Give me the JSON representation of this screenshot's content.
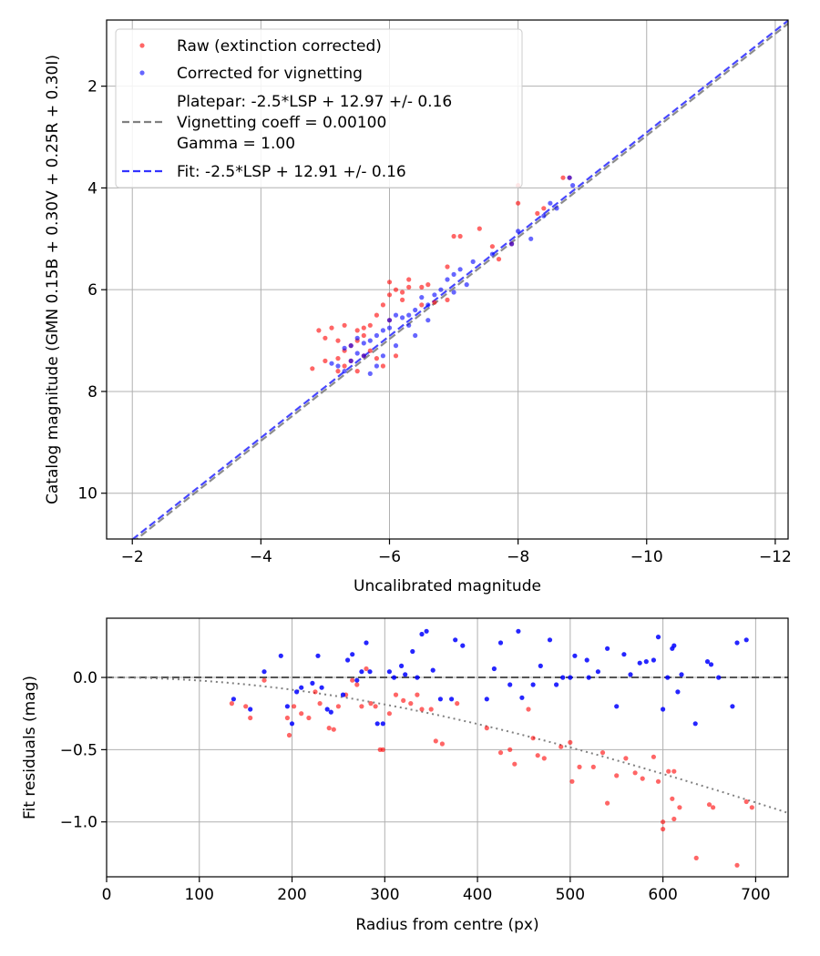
{
  "colors": {
    "raw": "#ff0000",
    "corrected": "#0000ff",
    "platepar_line": "#808080",
    "fit_line": "#3333ff",
    "zero_line": "#555555",
    "grid": "#b0b0b0"
  },
  "chart_data": [
    {
      "id": "calibration",
      "type": "scatter",
      "xlabel": "Uncalibrated magnitude",
      "ylabel": "Catalog magnitude (GMN 0.15B + 0.30V + 0.25R + 0.30I)",
      "xlim": [
        -1.6,
        -12.2
      ],
      "ylim": [
        10.9,
        0.7
      ],
      "x_ticks": [
        -2,
        -4,
        -6,
        -8,
        -10,
        -12
      ],
      "x_tick_labels": [
        "−2",
        "−4",
        "−6",
        "−8",
        "−10",
        "−12"
      ],
      "y_ticks": [
        2,
        4,
        6,
        8,
        10
      ],
      "y_tick_labels": [
        "2",
        "4",
        "6",
        "8",
        "10"
      ],
      "grid": true,
      "legend_position": "top-left",
      "legend": [
        {
          "kind": "marker",
          "color": "#ff0000",
          "lines": [
            "Raw (extinction corrected)"
          ]
        },
        {
          "kind": "marker",
          "color": "#0000ff",
          "lines": [
            "Corrected for vignetting"
          ]
        },
        {
          "kind": "line",
          "color": "#808080",
          "lines": [
            "Platepar: -2.5*LSP + 12.97 +/- 0.16",
            "Vignetting coeff = 0.00100",
            "Gamma = 1.00"
          ]
        },
        {
          "kind": "line",
          "color": "#3333ff",
          "lines": [
            "Fit: -2.5*LSP + 12.91 +/- 0.16"
          ]
        }
      ],
      "lines": [
        {
          "name": "Platepar",
          "intercept": 12.97,
          "slope_note": "catalog = uncalibrated + 12.97",
          "color": "#808080"
        },
        {
          "name": "Fit",
          "intercept": 12.91,
          "slope_note": "catalog = uncalibrated + 12.91",
          "color": "#3333ff"
        }
      ],
      "series": [
        {
          "name": "Raw (extinction corrected)",
          "color": "#ff0000",
          "points": [
            [
              -8.0,
              3.95
            ],
            [
              -8.0,
              4.3
            ],
            [
              -8.3,
              4.5
            ],
            [
              -8.4,
              4.4
            ],
            [
              -8.7,
              3.8
            ],
            [
              -8.8,
              3.8
            ],
            [
              -7.4,
              4.8
            ],
            [
              -7.1,
              4.95
            ],
            [
              -7.0,
              4.95
            ],
            [
              -7.6,
              5.15
            ],
            [
              -7.9,
              5.1
            ],
            [
              -7.7,
              5.4
            ],
            [
              -6.9,
              5.55
            ],
            [
              -6.6,
              5.9
            ],
            [
              -6.5,
              5.95
            ],
            [
              -6.3,
              5.95
            ],
            [
              -6.1,
              6.0
            ],
            [
              -6.2,
              6.05
            ],
            [
              -6.0,
              5.85
            ],
            [
              -6.0,
              6.1
            ],
            [
              -6.2,
              6.2
            ],
            [
              -5.9,
              6.3
            ],
            [
              -6.5,
              6.3
            ],
            [
              -6.7,
              6.25
            ],
            [
              -5.8,
              6.5
            ],
            [
              -6.0,
              6.6
            ],
            [
              -5.7,
              6.7
            ],
            [
              -5.6,
              6.75
            ],
            [
              -5.5,
              6.8
            ],
            [
              -5.3,
              6.7
            ],
            [
              -5.1,
              6.75
            ],
            [
              -4.9,
              6.8
            ],
            [
              -5.0,
              6.95
            ],
            [
              -5.2,
              7.0
            ],
            [
              -5.4,
              7.1
            ],
            [
              -5.5,
              7.0
            ],
            [
              -5.6,
              6.9
            ],
            [
              -5.7,
              7.2
            ],
            [
              -5.3,
              7.2
            ],
            [
              -5.2,
              7.35
            ],
            [
              -5.0,
              7.4
            ],
            [
              -4.8,
              7.55
            ],
            [
              -5.3,
              7.5
            ],
            [
              -5.5,
              7.6
            ],
            [
              -5.4,
              7.4
            ],
            [
              -5.8,
              7.35
            ],
            [
              -5.9,
              7.5
            ],
            [
              -6.1,
              7.3
            ],
            [
              -5.6,
              7.3
            ],
            [
              -5.2,
              7.6
            ],
            [
              -6.3,
              5.8
            ],
            [
              -6.9,
              6.2
            ]
          ]
        },
        {
          "name": "Corrected for vignetting",
          "color": "#0000ff",
          "points": [
            [
              -8.8,
              3.8
            ],
            [
              -8.85,
              3.95
            ],
            [
              -8.5,
              4.3
            ],
            [
              -8.6,
              4.4
            ],
            [
              -8.4,
              4.55
            ],
            [
              -8.0,
              4.85
            ],
            [
              -8.2,
              5.0
            ],
            [
              -7.9,
              5.1
            ],
            [
              -7.6,
              5.3
            ],
            [
              -7.3,
              5.45
            ],
            [
              -7.1,
              5.6
            ],
            [
              -7.0,
              5.7
            ],
            [
              -6.9,
              5.8
            ],
            [
              -7.2,
              5.9
            ],
            [
              -6.8,
              6.0
            ],
            [
              -6.7,
              6.1
            ],
            [
              -6.5,
              6.15
            ],
            [
              -6.6,
              6.3
            ],
            [
              -6.4,
              6.4
            ],
            [
              -6.3,
              6.5
            ],
            [
              -6.2,
              6.55
            ],
            [
              -6.1,
              6.5
            ],
            [
              -6.0,
              6.6
            ],
            [
              -6.3,
              6.7
            ],
            [
              -6.0,
              6.75
            ],
            [
              -5.9,
              6.8
            ],
            [
              -5.8,
              6.9
            ],
            [
              -5.7,
              7.0
            ],
            [
              -5.6,
              7.05
            ],
            [
              -5.5,
              6.95
            ],
            [
              -5.4,
              7.1
            ],
            [
              -5.3,
              7.15
            ],
            [
              -5.5,
              7.25
            ],
            [
              -5.6,
              7.3
            ],
            [
              -5.4,
              7.4
            ],
            [
              -5.2,
              7.5
            ],
            [
              -5.1,
              7.45
            ],
            [
              -5.3,
              7.6
            ],
            [
              -5.8,
              7.5
            ],
            [
              -5.9,
              7.3
            ],
            [
              -6.1,
              7.1
            ],
            [
              -6.4,
              6.9
            ],
            [
              -6.6,
              6.6
            ],
            [
              -7.0,
              6.05
            ],
            [
              -5.7,
              7.65
            ]
          ]
        }
      ]
    },
    {
      "id": "residuals",
      "type": "scatter",
      "xlabel": "Radius from centre (px)",
      "ylabel": "Fit residuals (mag)",
      "xlim": [
        0,
        735
      ],
      "ylim": [
        -1.38,
        0.41
      ],
      "x_ticks": [
        0,
        100,
        200,
        300,
        400,
        500,
        600,
        700
      ],
      "x_tick_labels": [
        "0",
        "100",
        "200",
        "300",
        "400",
        "500",
        "600",
        "700"
      ],
      "y_ticks": [
        0.0,
        -0.5,
        -1.0
      ],
      "y_tick_labels": [
        "0.0",
        "−0.5",
        "−1.0"
      ],
      "grid": true,
      "zero_line": 0,
      "model_curve": {
        "name": "Vignetting model",
        "coeff": 0.001,
        "color": "#808080",
        "style": "dotted"
      },
      "series": [
        {
          "name": "Raw (extinction corrected)",
          "color": "#ff0000",
          "points": [
            [
              135,
              -0.18
            ],
            [
              150,
              -0.2
            ],
            [
              155,
              -0.28
            ],
            [
              170,
              -0.02
            ],
            [
              195,
              -0.28
            ],
            [
              197,
              -0.4
            ],
            [
              202,
              -0.2
            ],
            [
              210,
              -0.25
            ],
            [
              218,
              -0.28
            ],
            [
              225,
              -0.1
            ],
            [
              230,
              -0.18
            ],
            [
              240,
              -0.35
            ],
            [
              245,
              -0.36
            ],
            [
              250,
              -0.2
            ],
            [
              258,
              -0.12
            ],
            [
              265,
              -0.02
            ],
            [
              270,
              -0.05
            ],
            [
              275,
              -0.2
            ],
            [
              280,
              0.06
            ],
            [
              285,
              -0.18
            ],
            [
              290,
              -0.2
            ],
            [
              295,
              -0.5
            ],
            [
              298,
              -0.5
            ],
            [
              305,
              -0.25
            ],
            [
              312,
              -0.12
            ],
            [
              320,
              -0.16
            ],
            [
              328,
              -0.18
            ],
            [
              335,
              -0.12
            ],
            [
              340,
              -0.22
            ],
            [
              350,
              -0.22
            ],
            [
              355,
              -0.44
            ],
            [
              362,
              -0.46
            ],
            [
              378,
              -0.18
            ],
            [
              410,
              -0.35
            ],
            [
              425,
              -0.52
            ],
            [
              435,
              -0.5
            ],
            [
              440,
              -0.6
            ],
            [
              455,
              -0.22
            ],
            [
              460,
              -0.42
            ],
            [
              465,
              -0.54
            ],
            [
              472,
              -0.56
            ],
            [
              490,
              -0.48
            ],
            [
              500,
              -0.45
            ],
            [
              502,
              -0.72
            ],
            [
              510,
              -0.62
            ],
            [
              525,
              -0.62
            ],
            [
              535,
              -0.52
            ],
            [
              540,
              -0.87
            ],
            [
              550,
              -0.68
            ],
            [
              560,
              -0.56
            ],
            [
              570,
              -0.66
            ],
            [
              578,
              -0.7
            ],
            [
              590,
              -0.55
            ],
            [
              595,
              -0.72
            ],
            [
              600,
              -1.0
            ],
            [
              600,
              -1.05
            ],
            [
              606,
              -0.65
            ],
            [
              612,
              -0.65
            ],
            [
              612,
              -0.98
            ],
            [
              618,
              -0.9
            ],
            [
              636,
              -1.25
            ],
            [
              650,
              -0.88
            ],
            [
              654,
              -0.9
            ],
            [
              680,
              -1.3
            ],
            [
              690,
              -0.86
            ],
            [
              696,
              -0.9
            ],
            [
              610,
              -0.84
            ]
          ]
        },
        {
          "name": "Corrected for vignetting",
          "color": "#0000ff",
          "points": [
            [
              137,
              -0.15
            ],
            [
              155,
              -0.22
            ],
            [
              170,
              0.04
            ],
            [
              188,
              0.15
            ],
            [
              195,
              -0.2
            ],
            [
              200,
              -0.32
            ],
            [
              205,
              -0.1
            ],
            [
              210,
              -0.07
            ],
            [
              222,
              -0.04
            ],
            [
              228,
              0.15
            ],
            [
              232,
              -0.07
            ],
            [
              238,
              -0.22
            ],
            [
              242,
              -0.24
            ],
            [
              255,
              -0.12
            ],
            [
              260,
              0.12
            ],
            [
              265,
              0.16
            ],
            [
              270,
              -0.02
            ],
            [
              275,
              0.04
            ],
            [
              280,
              0.24
            ],
            [
              284,
              0.04
            ],
            [
              292,
              -0.32
            ],
            [
              298,
              -0.32
            ],
            [
              305,
              0.04
            ],
            [
              310,
              0.0
            ],
            [
              318,
              0.08
            ],
            [
              322,
              0.02
            ],
            [
              330,
              0.18
            ],
            [
              335,
              0.0
            ],
            [
              340,
              0.3
            ],
            [
              345,
              0.32
            ],
            [
              352,
              0.05
            ],
            [
              360,
              -0.15
            ],
            [
              372,
              -0.15
            ],
            [
              376,
              0.26
            ],
            [
              384,
              0.22
            ],
            [
              410,
              -0.15
            ],
            [
              418,
              0.06
            ],
            [
              425,
              0.24
            ],
            [
              435,
              -0.05
            ],
            [
              444,
              0.32
            ],
            [
              448,
              -0.14
            ],
            [
              460,
              -0.05
            ],
            [
              468,
              0.08
            ],
            [
              478,
              0.26
            ],
            [
              485,
              -0.05
            ],
            [
              492,
              0.0
            ],
            [
              505,
              0.15
            ],
            [
              518,
              0.12
            ],
            [
              520,
              0.0
            ],
            [
              530,
              0.04
            ],
            [
              540,
              0.2
            ],
            [
              550,
              -0.2
            ],
            [
              558,
              0.16
            ],
            [
              565,
              0.02
            ],
            [
              575,
              0.1
            ],
            [
              582,
              0.11
            ],
            [
              590,
              0.12
            ],
            [
              595,
              0.28
            ],
            [
              600,
              -0.22
            ],
            [
              605,
              0.0
            ],
            [
              610,
              0.2
            ],
            [
              612,
              0.22
            ],
            [
              616,
              -0.1
            ],
            [
              620,
              0.02
            ],
            [
              635,
              -0.32
            ],
            [
              648,
              0.11
            ],
            [
              652,
              0.09
            ],
            [
              660,
              0.0
            ],
            [
              675,
              -0.2
            ],
            [
              680,
              0.24
            ],
            [
              690,
              0.26
            ],
            [
              500,
              0.0
            ]
          ]
        }
      ]
    }
  ]
}
